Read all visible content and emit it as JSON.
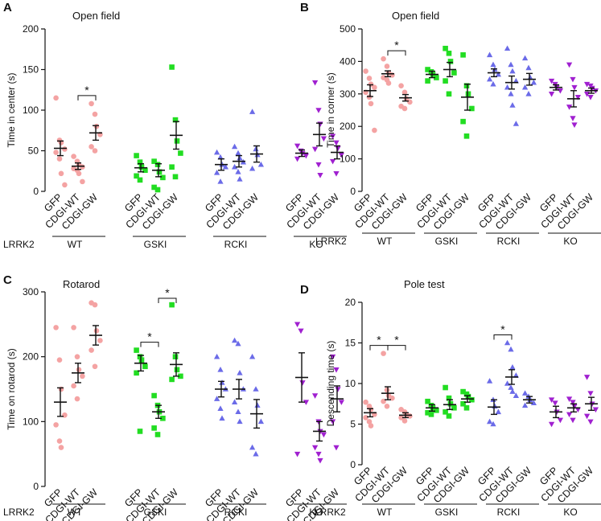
{
  "chart_data": [
    {
      "panel": "A",
      "type": "scatter",
      "title": "Open field",
      "ylabel": "Time in center (s)",
      "ylim": [
        0,
        200
      ],
      "yticks": [
        0,
        50,
        100,
        150,
        200
      ],
      "categories": [
        "GFP",
        "CDGI-WT",
        "CDGI-GW"
      ],
      "row_label": "LRRK2",
      "groups": [
        {
          "name": "WT",
          "color": "#F4A3A3",
          "marker": "circle",
          "series": [
            {
              "condition": "GFP",
              "mean": 53,
              "sem": 9,
              "points": [
                115,
                63,
                60,
                52,
                48,
                40,
                22,
                8
              ]
            },
            {
              "condition": "CDGI-WT",
              "mean": 31,
              "sem": 4,
              "points": [
                43,
                37,
                33,
                30,
                28,
                26,
                22,
                12
              ]
            },
            {
              "condition": "CDGI-GW",
              "mean": 72,
              "sem": 9,
              "points": [
                108,
                95,
                80,
                70,
                55,
                50
              ]
            }
          ]
        },
        {
          "name": "GSKI",
          "color": "#22DD22",
          "marker": "square",
          "series": [
            {
              "condition": "GFP",
              "mean": 29,
              "sem": 5,
              "points": [
                44,
                36,
                30,
                26,
                19,
                14
              ]
            },
            {
              "condition": "CDGI-WT",
              "mean": 26,
              "sem": 8,
              "points": [
                37,
                33,
                24,
                17,
                5,
                2
              ]
            },
            {
              "condition": "CDGI-GW",
              "mean": 69,
              "sem": 17,
              "points": [
                153,
                88,
                62,
                47,
                30,
                18
              ]
            }
          ]
        },
        {
          "name": "RCKI",
          "color": "#6B6BE8",
          "marker": "triangle",
          "series": [
            {
              "condition": "GFP",
              "mean": 33,
              "sem": 7,
              "points": [
                48,
                42,
                33,
                30,
                23,
                12
              ]
            },
            {
              "condition": "CDGI-WT",
              "mean": 37,
              "sem": 7,
              "points": [
                55,
                47,
                41,
                36,
                30,
                24,
                15
              ]
            },
            {
              "condition": "CDGI-GW",
              "mean": 46,
              "sem": 10,
              "points": [
                98,
                52,
                45,
                33,
                28
              ]
            }
          ]
        },
        {
          "name": "KO",
          "color": "#A020D0",
          "marker": "triangle-down",
          "series": [
            {
              "condition": "GFP",
              "mean": 47,
              "sem": 4,
              "points": [
                56,
                50,
                47,
                44,
                40
              ]
            },
            {
              "condition": "CDGI-WT",
              "mean": 70,
              "sem": 14,
              "points": [
                134,
                100,
                83,
                65,
                52,
                33,
                20
              ]
            },
            {
              "condition": "CDGI-GW",
              "mean": 48,
              "sem": 8,
              "points": [
                68,
                60,
                53,
                45,
                37,
                22
              ]
            }
          ]
        }
      ],
      "significance": [
        {
          "group": "WT",
          "from": "CDGI-WT",
          "to": "CDGI-GW",
          "label": "*"
        }
      ]
    },
    {
      "panel": "B",
      "type": "scatter",
      "title": "Open field",
      "ylabel": "Time in corner (s)",
      "ylim": [
        0,
        500
      ],
      "yticks": [
        0,
        100,
        200,
        300,
        400,
        500
      ],
      "categories": [
        "GFP",
        "CDGI-WT",
        "CDGI-GW"
      ],
      "row_label": "LRRK2",
      "groups": [
        {
          "name": "WT",
          "color": "#F4A3A3",
          "marker": "circle",
          "series": [
            {
              "condition": "GFP",
              "mean": 310,
              "sem": 18,
              "points": [
                370,
                348,
                330,
                320,
                305,
                290,
                270,
                188
              ]
            },
            {
              "condition": "CDGI-WT",
              "mean": 362,
              "sem": 9,
              "points": [
                408,
                385,
                365,
                358,
                350,
                343,
                333
              ]
            },
            {
              "condition": "CDGI-GW",
              "mean": 288,
              "sem": 10,
              "points": [
                325,
                305,
                285,
                275,
                262,
                255
              ]
            }
          ]
        },
        {
          "name": "GSKI",
          "color": "#22DD22",
          "marker": "square",
          "series": [
            {
              "condition": "GFP",
              "mean": 360,
              "sem": 10,
              "points": [
                375,
                368,
                360,
                350,
                340
              ]
            },
            {
              "condition": "CDGI-WT",
              "mean": 375,
              "sem": 22,
              "points": [
                440,
                425,
                400,
                365,
                340,
                300
              ]
            },
            {
              "condition": "CDGI-GW",
              "mean": 290,
              "sem": 40,
              "points": [
                420,
                325,
                300,
                255,
                215,
                170
              ]
            }
          ]
        },
        {
          "name": "RCKI",
          "color": "#6B6BE8",
          "marker": "triangle",
          "series": [
            {
              "condition": "GFP",
              "mean": 365,
              "sem": 12,
              "points": [
                420,
                390,
                375,
                360,
                345,
                330
              ]
            },
            {
              "condition": "CDGI-WT",
              "mean": 335,
              "sem": 20,
              "points": [
                440,
                390,
                370,
                340,
                320,
                300,
                265,
                208
              ]
            },
            {
              "condition": "CDGI-GW",
              "mean": 345,
              "sem": 18,
              "points": [
                410,
                380,
                350,
                335,
                320,
                300
              ]
            }
          ]
        },
        {
          "name": "KO",
          "color": "#A020D0",
          "marker": "triangle-down",
          "series": [
            {
              "condition": "GFP",
              "mean": 320,
              "sem": 8,
              "points": [
                340,
                330,
                320,
                310,
                300
              ]
            },
            {
              "condition": "CDGI-WT",
              "mean": 285,
              "sem": 25,
              "points": [
                390,
                345,
                320,
                290,
                260,
                225,
                205
              ]
            },
            {
              "condition": "CDGI-GW",
              "mean": 310,
              "sem": 8,
              "points": [
                330,
                325,
                318,
                310,
                300,
                290
              ]
            }
          ]
        }
      ],
      "significance": [
        {
          "group": "WT",
          "from": "CDGI-WT",
          "to": "CDGI-GW",
          "label": "*"
        }
      ]
    },
    {
      "panel": "C",
      "type": "scatter",
      "title": "Rotarod",
      "ylabel": "Time on rotarod (s)",
      "ylim": [
        0,
        300
      ],
      "yticks": [
        0,
        100,
        200,
        300
      ],
      "categories": [
        "GFP",
        "CDGI-WT",
        "CDGI-GW"
      ],
      "row_label": "LRRK2",
      "groups": [
        {
          "name": "WT",
          "color": "#F4A3A3",
          "marker": "circle",
          "series": [
            {
              "condition": "GFP",
              "mean": 130,
              "sem": 22,
              "points": [
                245,
                195,
                150,
                110,
                95,
                70,
                60
              ]
            },
            {
              "condition": "CDGI-WT",
              "mean": 175,
              "sem": 15,
              "points": [
                245,
                200,
                180,
                170,
                155,
                135
              ]
            },
            {
              "condition": "CDGI-GW",
              "mean": 233,
              "sem": 15,
              "points": [
                283,
                280,
                240,
                225,
                210,
                185
              ]
            }
          ]
        },
        {
          "name": "GSKI",
          "color": "#22DD22",
          "marker": "square",
          "series": [
            {
              "condition": "GFP",
              "mean": 190,
              "sem": 12,
              "points": [
                210,
                200,
                195,
                185,
                175,
                85
              ]
            },
            {
              "condition": "CDGI-WT",
              "mean": 115,
              "sem": 10,
              "points": [
                140,
                125,
                115,
                105,
                90,
                80
              ]
            },
            {
              "condition": "CDGI-GW",
              "mean": 188,
              "sem": 18,
              "points": [
                280,
                200,
                180,
                170,
                165
              ]
            }
          ]
        },
        {
          "name": "RCKI",
          "color": "#6B6BE8",
          "marker": "triangle",
          "series": [
            {
              "condition": "GFP",
              "mean": 150,
              "sem": 12,
              "points": [
                200,
                180,
                160,
                150,
                135,
                120,
                105
              ]
            },
            {
              "condition": "CDGI-WT",
              "mean": 150,
              "sem": 15,
              "points": [
                225,
                220,
                175,
                150,
                130,
                115,
                100
              ]
            },
            {
              "condition": "CDGI-GW",
              "mean": 112,
              "sem": 22,
              "points": [
                200,
                150,
                125,
                100,
                60,
                50
              ]
            }
          ]
        },
        {
          "name": "KO",
          "color": "#A020D0",
          "marker": "triangle-down",
          "series": [
            {
              "condition": "GFP",
              "mean": 168,
              "sem": 38,
              "points": [
                250,
                240,
                160,
                130,
                50
              ]
            },
            {
              "condition": "CDGI-WT",
              "mean": 85,
              "sem": 15,
              "points": [
                140,
                100,
                85,
                80,
                60,
                50,
                40
              ]
            },
            {
              "condition": "CDGI-GW",
              "mean": 135,
              "sem": 20,
              "points": [
                200,
                180,
                150,
                130,
                100,
                60
              ]
            }
          ]
        }
      ],
      "significance": [
        {
          "group": "GSKI",
          "from": "GFP",
          "to": "CDGI-WT",
          "label": "*"
        },
        {
          "group": "GSKI",
          "from": "CDGI-WT",
          "to": "CDGI-GW",
          "label": "*"
        }
      ]
    },
    {
      "panel": "D",
      "type": "scatter",
      "title": "Pole test",
      "ylabel": "Descending time (s)",
      "ylim": [
        0,
        20
      ],
      "yticks": [
        0,
        5,
        10,
        15,
        20
      ],
      "categories": [
        "GFP",
        "CDGI-WT",
        "CDGI-GW"
      ],
      "row_label": "LRRK2",
      "groups": [
        {
          "name": "WT",
          "color": "#F4A3A3",
          "marker": "circle",
          "series": [
            {
              "condition": "GFP",
              "mean": 6.4,
              "sem": 0.5,
              "points": [
                7.7,
                7.2,
                6.8,
                6.2,
                5.8,
                5.3,
                4.8
              ]
            },
            {
              "condition": "CDGI-WT",
              "mean": 8.8,
              "sem": 0.8,
              "points": [
                13.7,
                9.2,
                8.5,
                8.2,
                7.8,
                7.2
              ]
            },
            {
              "condition": "CDGI-GW",
              "mean": 6.1,
              "sem": 0.3,
              "points": [
                6.8,
                6.5,
                6.2,
                6.0,
                5.8,
                5.4
              ]
            }
          ]
        },
        {
          "name": "GSKI",
          "color": "#22DD22",
          "marker": "square",
          "series": [
            {
              "condition": "GFP",
              "mean": 7.0,
              "sem": 0.4,
              "points": [
                7.8,
                7.3,
                7.0,
                6.7,
                6.4,
                6.2
              ]
            },
            {
              "condition": "CDGI-WT",
              "mean": 7.4,
              "sem": 0.6,
              "points": [
                9.5,
                8.2,
                7.5,
                7.0,
                6.5,
                6.0
              ]
            },
            {
              "condition": "CDGI-GW",
              "mean": 8.1,
              "sem": 0.4,
              "points": [
                9.0,
                8.7,
                8.4,
                8.0,
                7.5,
                7.0
              ]
            }
          ]
        },
        {
          "name": "RCKI",
          "color": "#6B6BE8",
          "marker": "triangle",
          "series": [
            {
              "condition": "GFP",
              "mean": 7.1,
              "sem": 0.9,
              "points": [
                10.3,
                8.0,
                7.2,
                6.5,
                5.3,
                5.0
              ]
            },
            {
              "condition": "CDGI-WT",
              "mean": 10.8,
              "sem": 0.9,
              "points": [
                15.0,
                14.2,
                12.0,
                11.0,
                10.0,
                9.5,
                9.0,
                8.5
              ]
            },
            {
              "condition": "CDGI-GW",
              "mean": 8.0,
              "sem": 0.4,
              "points": [
                8.8,
                8.4,
                8.0,
                7.6,
                7.3
              ]
            }
          ]
        },
        {
          "name": "KO",
          "color": "#A020D0",
          "marker": "triangle-down",
          "series": [
            {
              "condition": "GFP",
              "mean": 6.5,
              "sem": 0.7,
              "points": [
                8.0,
                7.6,
                6.5,
                5.5,
                5.0
              ]
            },
            {
              "condition": "CDGI-WT",
              "mean": 7.0,
              "sem": 0.5,
              "points": [
                8.1,
                7.7,
                7.2,
                6.8,
                6.2,
                5.5
              ]
            },
            {
              "condition": "CDGI-GW",
              "mean": 7.5,
              "sem": 0.8,
              "points": [
                10.8,
                8.8,
                7.5,
                6.8,
                6.0,
                5.3
              ]
            }
          ]
        }
      ],
      "significance": [
        {
          "group": "WT",
          "from": "GFP",
          "to": "CDGI-WT",
          "label": "*"
        },
        {
          "group": "WT",
          "from": "CDGI-WT",
          "to": "CDGI-GW",
          "label": "*"
        },
        {
          "group": "RCKI",
          "from": "GFP",
          "to": "CDGI-WT",
          "label": "*"
        }
      ]
    }
  ]
}
